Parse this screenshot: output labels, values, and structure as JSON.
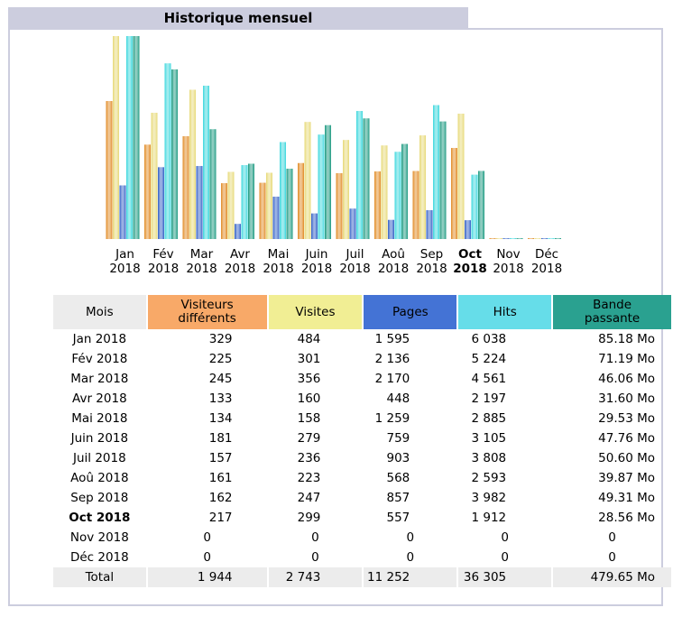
{
  "title": "Historique mensuel",
  "chart_data": {
    "type": "bar",
    "categories": [
      "Jan",
      "Fév",
      "Mar",
      "Avr",
      "Mai",
      "Juin",
      "Juil",
      "Aoû",
      "Sep",
      "Oct",
      "Nov",
      "Déc"
    ],
    "years": [
      "2018",
      "2018",
      "2018",
      "2018",
      "2018",
      "2018",
      "2018",
      "2018",
      "2018",
      "2018",
      "2018",
      "2018"
    ],
    "current_index": 9,
    "series": [
      {
        "name": "Visiteurs différents",
        "color": "#e0861c",
        "values": [
          329,
          225,
          245,
          133,
          134,
          181,
          157,
          161,
          162,
          217,
          0,
          0
        ]
      },
      {
        "name": "Visites",
        "color": "#e6d872",
        "values": [
          484,
          301,
          356,
          160,
          158,
          279,
          236,
          223,
          247,
          299,
          0,
          0
        ]
      },
      {
        "name": "Pages",
        "color": "#2d5cc5",
        "values": [
          1595,
          2136,
          2170,
          448,
          1259,
          759,
          903,
          568,
          857,
          557,
          0,
          0
        ]
      },
      {
        "name": "Hits",
        "color": "#36d6dc",
        "values": [
          6038,
          5224,
          4561,
          2197,
          2885,
          3105,
          3808,
          2593,
          3982,
          1912,
          0,
          0
        ]
      },
      {
        "name": "Bande passante",
        "color": "#14967c",
        "values": [
          85.18,
          71.19,
          46.06,
          31.6,
          29.53,
          47.76,
          50.6,
          39.87,
          49.31,
          28.56,
          0,
          0
        ]
      }
    ],
    "scale_groups": [
      [
        0,
        1
      ],
      [
        2,
        3
      ],
      [
        4
      ]
    ]
  },
  "table": {
    "headers": [
      {
        "label": "Mois",
        "color": "#ececec"
      },
      {
        "label": "Visiteurs différents",
        "color": "#f8a968"
      },
      {
        "label": "Visites",
        "color": "#f1ee94"
      },
      {
        "label": "Pages",
        "color": "#4473d5"
      },
      {
        "label": "Hits",
        "color": "#66dde9"
      },
      {
        "label": "Bande passante",
        "color": "#2aa190"
      }
    ],
    "rows": [
      [
        "Jan 2018",
        "329",
        "484",
        "1 595",
        "6 038",
        "85.18 Mo"
      ],
      [
        "Fév 2018",
        "225",
        "301",
        "2 136",
        "5 224",
        "71.19 Mo"
      ],
      [
        "Mar 2018",
        "245",
        "356",
        "2 170",
        "4 561",
        "46.06 Mo"
      ],
      [
        "Avr 2018",
        "133",
        "160",
        "448",
        "2 197",
        "31.60 Mo"
      ],
      [
        "Mai 2018",
        "134",
        "158",
        "1 259",
        "2 885",
        "29.53 Mo"
      ],
      [
        "Juin 2018",
        "181",
        "279",
        "759",
        "3 105",
        "47.76 Mo"
      ],
      [
        "Juil 2018",
        "157",
        "236",
        "903",
        "3 808",
        "50.60 Mo"
      ],
      [
        "Aoû 2018",
        "161",
        "223",
        "568",
        "2 593",
        "39.87 Mo"
      ],
      [
        "Sep 2018",
        "162",
        "247",
        "857",
        "3 982",
        "49.31 Mo"
      ],
      [
        "Oct 2018",
        "217",
        "299",
        "557",
        "1 912",
        "28.56 Mo"
      ],
      [
        "Nov 2018",
        "0",
        "0",
        "0",
        "0",
        "0"
      ],
      [
        "Déc 2018",
        "0",
        "0",
        "0",
        "0",
        "0"
      ]
    ],
    "current_row": 9,
    "total": [
      "Total",
      "1 944",
      "2 743",
      "11 252",
      "36 305",
      "479.65 Mo"
    ]
  }
}
